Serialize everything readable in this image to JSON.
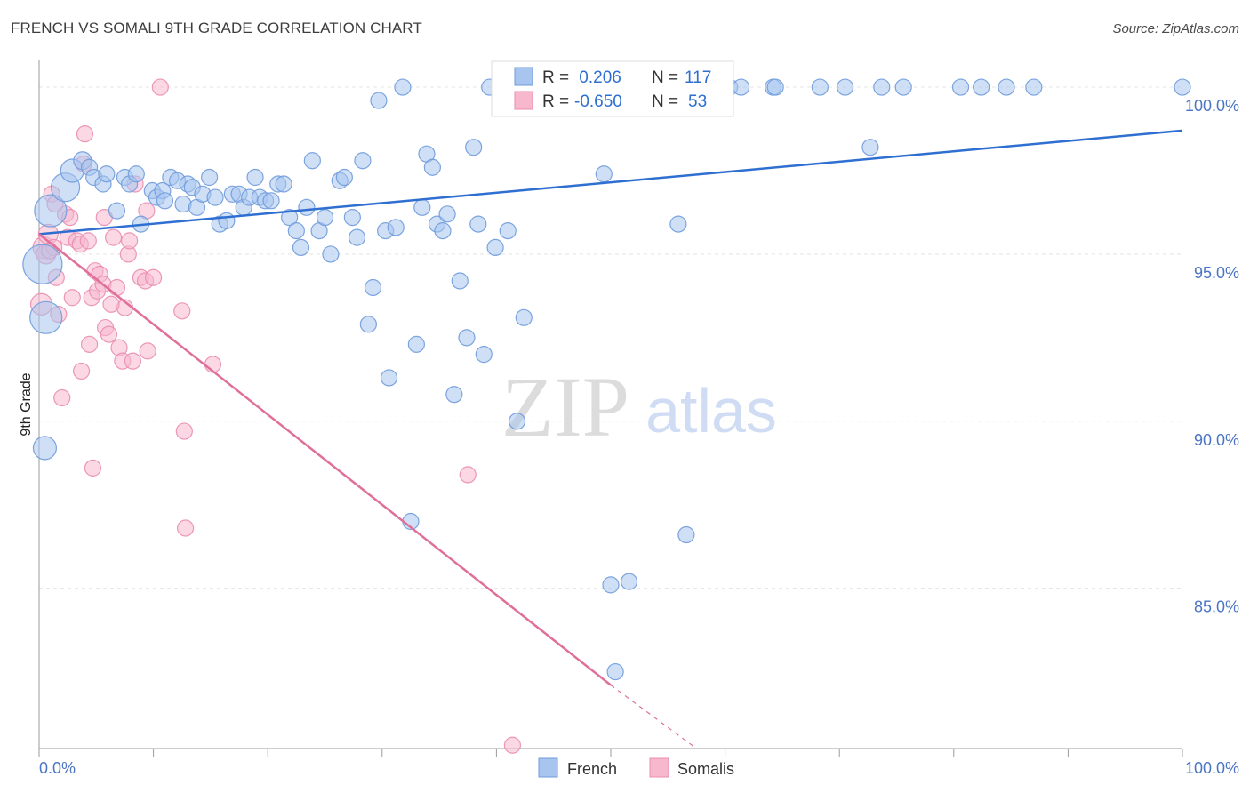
{
  "title": "FRENCH VS SOMALI 9TH GRADE CORRELATION CHART",
  "source": "Source: ZipAtlas.com",
  "watermark": {
    "zip": "ZIP",
    "atlas": "atlas"
  },
  "colors": {
    "french_fill": "#a8c5ef",
    "french_stroke": "#6f9bdc",
    "french_line": "#2e6fd1",
    "somali_fill": "#f7b8cd",
    "somali_stroke": "#ea8db0",
    "somali_line": "#e0709a",
    "tick": "#4a74c4",
    "grid": "#e4e4e4"
  },
  "legend": {
    "french": {
      "r_label": "R = ",
      "r_value": " 0.206",
      "n_label": "N = ",
      "n_value": "117"
    },
    "somali": {
      "r_label": "R = ",
      "r_value": "-0.650",
      "n_label": "N = ",
      "n_value": " 53"
    }
  },
  "chart_data": {
    "type": "scatter",
    "title": "FRENCH VS SOMALI 9TH GRADE CORRELATION CHART",
    "xlabel": "",
    "ylabel": "9th Grade",
    "xlim": [
      0,
      100
    ],
    "ylim": [
      80.2,
      100.8
    ],
    "x_tick_labels": [
      "0.0%",
      "100.0%"
    ],
    "y_ticks": [
      85,
      90,
      95,
      100
    ],
    "y_tick_labels": [
      "85.0%",
      "90.0%",
      "95.0%",
      "100.0%"
    ],
    "grid": true,
    "legend_position": "top-center",
    "series": [
      {
        "name": "French",
        "color": "#a8c5ef",
        "trend": {
          "x": [
            0,
            100
          ],
          "y": [
            95.6,
            98.7
          ]
        },
        "points": [
          {
            "x": 0.3,
            "y": 94.7,
            "s": 22
          },
          {
            "x": 0.6,
            "y": 93.1,
            "s": 18
          },
          {
            "x": 1.0,
            "y": 96.3,
            "s": 18
          },
          {
            "x": 0.5,
            "y": 89.2,
            "s": 13
          },
          {
            "x": 2.3,
            "y": 97.0,
            "s": 16
          },
          {
            "x": 2.9,
            "y": 97.5,
            "s": 13
          },
          {
            "x": 3.8,
            "y": 97.8,
            "s": 10
          },
          {
            "x": 4.4,
            "y": 97.6,
            "s": 9
          },
          {
            "x": 4.8,
            "y": 97.3,
            "s": 9
          },
          {
            "x": 5.6,
            "y": 97.1,
            "s": 9
          },
          {
            "x": 5.9,
            "y": 97.4,
            "s": 9
          },
          {
            "x": 6.8,
            "y": 96.3,
            "s": 9
          },
          {
            "x": 7.5,
            "y": 97.3,
            "s": 9
          },
          {
            "x": 7.9,
            "y": 97.1,
            "s": 9
          },
          {
            "x": 8.5,
            "y": 97.4,
            "s": 9
          },
          {
            "x": 8.9,
            "y": 95.9,
            "s": 9
          },
          {
            "x": 9.9,
            "y": 96.9,
            "s": 9
          },
          {
            "x": 10.3,
            "y": 96.7,
            "s": 9
          },
          {
            "x": 10.8,
            "y": 96.9,
            "s": 9
          },
          {
            "x": 11.0,
            "y": 96.6,
            "s": 9
          },
          {
            "x": 11.5,
            "y": 97.3,
            "s": 9
          },
          {
            "x": 12.1,
            "y": 97.2,
            "s": 9
          },
          {
            "x": 12.6,
            "y": 96.5,
            "s": 9
          },
          {
            "x": 13.0,
            "y": 97.1,
            "s": 9
          },
          {
            "x": 13.4,
            "y": 97.0,
            "s": 9
          },
          {
            "x": 13.8,
            "y": 96.4,
            "s": 9
          },
          {
            "x": 14.3,
            "y": 96.8,
            "s": 9
          },
          {
            "x": 14.9,
            "y": 97.3,
            "s": 9
          },
          {
            "x": 15.4,
            "y": 96.7,
            "s": 9
          },
          {
            "x": 15.8,
            "y": 95.9,
            "s": 9
          },
          {
            "x": 16.4,
            "y": 96.0,
            "s": 9
          },
          {
            "x": 16.9,
            "y": 96.8,
            "s": 9
          },
          {
            "x": 17.5,
            "y": 96.8,
            "s": 9
          },
          {
            "x": 17.9,
            "y": 96.4,
            "s": 9
          },
          {
            "x": 18.4,
            "y": 96.7,
            "s": 9
          },
          {
            "x": 18.9,
            "y": 97.3,
            "s": 9
          },
          {
            "x": 19.3,
            "y": 96.7,
            "s": 9
          },
          {
            "x": 19.8,
            "y": 96.6,
            "s": 9
          },
          {
            "x": 20.3,
            "y": 96.6,
            "s": 9
          },
          {
            "x": 20.9,
            "y": 97.1,
            "s": 9
          },
          {
            "x": 21.4,
            "y": 97.1,
            "s": 9
          },
          {
            "x": 21.9,
            "y": 96.1,
            "s": 9
          },
          {
            "x": 22.5,
            "y": 95.7,
            "s": 9
          },
          {
            "x": 22.9,
            "y": 95.2,
            "s": 9
          },
          {
            "x": 23.4,
            "y": 96.4,
            "s": 9
          },
          {
            "x": 23.9,
            "y": 97.8,
            "s": 9
          },
          {
            "x": 24.5,
            "y": 95.7,
            "s": 9
          },
          {
            "x": 25.0,
            "y": 96.1,
            "s": 9
          },
          {
            "x": 25.5,
            "y": 95.0,
            "s": 9
          },
          {
            "x": 26.3,
            "y": 97.2,
            "s": 9
          },
          {
            "x": 26.7,
            "y": 97.3,
            "s": 9
          },
          {
            "x": 27.4,
            "y": 96.1,
            "s": 9
          },
          {
            "x": 27.8,
            "y": 95.5,
            "s": 9
          },
          {
            "x": 28.3,
            "y": 97.8,
            "s": 9
          },
          {
            "x": 29.2,
            "y": 94.0,
            "s": 9
          },
          {
            "x": 28.8,
            "y": 92.9,
            "s": 9
          },
          {
            "x": 29.7,
            "y": 99.6,
            "s": 9
          },
          {
            "x": 30.3,
            "y": 95.7,
            "s": 9
          },
          {
            "x": 31.2,
            "y": 95.8,
            "s": 9
          },
          {
            "x": 30.6,
            "y": 91.3,
            "s": 9
          },
          {
            "x": 31.8,
            "y": 100.0,
            "s": 9
          },
          {
            "x": 32.5,
            "y": 87.0,
            "s": 9
          },
          {
            "x": 33.0,
            "y": 92.3,
            "s": 9
          },
          {
            "x": 33.5,
            "y": 96.4,
            "s": 9
          },
          {
            "x": 33.9,
            "y": 98.0,
            "s": 9
          },
          {
            "x": 34.4,
            "y": 97.6,
            "s": 9
          },
          {
            "x": 34.8,
            "y": 95.9,
            "s": 9
          },
          {
            "x": 35.3,
            "y": 95.7,
            "s": 9
          },
          {
            "x": 35.7,
            "y": 96.2,
            "s": 9
          },
          {
            "x": 36.3,
            "y": 90.8,
            "s": 9
          },
          {
            "x": 36.8,
            "y": 94.2,
            "s": 9
          },
          {
            "x": 37.4,
            "y": 92.5,
            "s": 9
          },
          {
            "x": 38.0,
            "y": 98.2,
            "s": 9
          },
          {
            "x": 38.4,
            "y": 95.9,
            "s": 9
          },
          {
            "x": 38.9,
            "y": 92.0,
            "s": 9
          },
          {
            "x": 39.4,
            "y": 100.0,
            "s": 9
          },
          {
            "x": 39.9,
            "y": 95.2,
            "s": 9
          },
          {
            "x": 40.6,
            "y": 100.0,
            "s": 9
          },
          {
            "x": 41.0,
            "y": 95.7,
            "s": 9
          },
          {
            "x": 41.8,
            "y": 90.0,
            "s": 9
          },
          {
            "x": 42.4,
            "y": 93.1,
            "s": 9
          },
          {
            "x": 43.2,
            "y": 100.0,
            "s": 9
          },
          {
            "x": 44.4,
            "y": 100.0,
            "s": 9
          },
          {
            "x": 45.8,
            "y": 100.0,
            "s": 9
          },
          {
            "x": 47.2,
            "y": 100.0,
            "s": 9
          },
          {
            "x": 48.6,
            "y": 100.0,
            "s": 9
          },
          {
            "x": 49.4,
            "y": 97.4,
            "s": 9
          },
          {
            "x": 50.0,
            "y": 85.1,
            "s": 9
          },
          {
            "x": 50.4,
            "y": 82.5,
            "s": 9
          },
          {
            "x": 51.6,
            "y": 85.2,
            "s": 9
          },
          {
            "x": 53.9,
            "y": 100.0,
            "s": 9
          },
          {
            "x": 55.1,
            "y": 100.0,
            "s": 9
          },
          {
            "x": 55.9,
            "y": 95.9,
            "s": 9
          },
          {
            "x": 56.6,
            "y": 86.6,
            "s": 9
          },
          {
            "x": 58.3,
            "y": 100.0,
            "s": 9
          },
          {
            "x": 60.4,
            "y": 100.0,
            "s": 9
          },
          {
            "x": 61.4,
            "y": 100.0,
            "s": 9
          },
          {
            "x": 64.2,
            "y": 100.0,
            "s": 9
          },
          {
            "x": 64.4,
            "y": 100.0,
            "s": 9
          },
          {
            "x": 68.3,
            "y": 100.0,
            "s": 9
          },
          {
            "x": 70.5,
            "y": 100.0,
            "s": 9
          },
          {
            "x": 72.7,
            "y": 98.2,
            "s": 9
          },
          {
            "x": 73.7,
            "y": 100.0,
            "s": 9
          },
          {
            "x": 75.6,
            "y": 100.0,
            "s": 9
          },
          {
            "x": 80.6,
            "y": 100.0,
            "s": 9
          },
          {
            "x": 82.4,
            "y": 100.0,
            "s": 9
          },
          {
            "x": 84.6,
            "y": 100.0,
            "s": 9
          },
          {
            "x": 87.0,
            "y": 100.0,
            "s": 9
          },
          {
            "x": 100.0,
            "y": 100.0,
            "s": 9
          }
        ]
      },
      {
        "name": "Somalis",
        "color": "#f7b8cd",
        "trend": {
          "x": [
            0,
            50
          ],
          "y": [
            95.6,
            82.1
          ],
          "dashed_to": {
            "x": 57.5,
            "y": 80.2
          }
        },
        "points": [
          {
            "x": 0.2,
            "y": 93.5,
            "s": 12
          },
          {
            "x": 0.4,
            "y": 95.2,
            "s": 12
          },
          {
            "x": 0.6,
            "y": 95.0,
            "s": 11
          },
          {
            "x": 0.8,
            "y": 95.6,
            "s": 11
          },
          {
            "x": 1.1,
            "y": 96.8,
            "s": 9
          },
          {
            "x": 1.3,
            "y": 95.2,
            "s": 9
          },
          {
            "x": 1.5,
            "y": 94.3,
            "s": 9
          },
          {
            "x": 1.7,
            "y": 93.2,
            "s": 9
          },
          {
            "x": 2.0,
            "y": 90.7,
            "s": 9
          },
          {
            "x": 2.3,
            "y": 96.2,
            "s": 9
          },
          {
            "x": 2.5,
            "y": 95.5,
            "s": 9
          },
          {
            "x": 2.7,
            "y": 96.1,
            "s": 9
          },
          {
            "x": 2.9,
            "y": 93.7,
            "s": 9
          },
          {
            "x": 3.3,
            "y": 95.4,
            "s": 9
          },
          {
            "x": 3.6,
            "y": 95.3,
            "s": 9
          },
          {
            "x": 3.7,
            "y": 91.5,
            "s": 9
          },
          {
            "x": 3.9,
            "y": 97.7,
            "s": 9
          },
          {
            "x": 4.0,
            "y": 98.6,
            "s": 9
          },
          {
            "x": 4.3,
            "y": 95.4,
            "s": 9
          },
          {
            "x": 4.4,
            "y": 92.3,
            "s": 9
          },
          {
            "x": 4.6,
            "y": 93.7,
            "s": 9
          },
          {
            "x": 4.7,
            "y": 88.6,
            "s": 9
          },
          {
            "x": 4.9,
            "y": 94.5,
            "s": 9
          },
          {
            "x": 5.1,
            "y": 93.9,
            "s": 9
          },
          {
            "x": 5.3,
            "y": 94.4,
            "s": 9
          },
          {
            "x": 5.6,
            "y": 94.1,
            "s": 9
          },
          {
            "x": 5.7,
            "y": 96.1,
            "s": 9
          },
          {
            "x": 5.8,
            "y": 92.8,
            "s": 9
          },
          {
            "x": 6.1,
            "y": 92.6,
            "s": 9
          },
          {
            "x": 6.5,
            "y": 95.5,
            "s": 9
          },
          {
            "x": 6.8,
            "y": 94.0,
            "s": 9
          },
          {
            "x": 7.0,
            "y": 92.2,
            "s": 9
          },
          {
            "x": 7.3,
            "y": 91.8,
            "s": 9
          },
          {
            "x": 7.5,
            "y": 93.4,
            "s": 9
          },
          {
            "x": 7.8,
            "y": 95.0,
            "s": 9
          },
          {
            "x": 7.9,
            "y": 95.4,
            "s": 9
          },
          {
            "x": 8.2,
            "y": 91.8,
            "s": 9
          },
          {
            "x": 8.4,
            "y": 97.1,
            "s": 9
          },
          {
            "x": 8.9,
            "y": 94.3,
            "s": 9
          },
          {
            "x": 9.3,
            "y": 94.2,
            "s": 9
          },
          {
            "x": 9.4,
            "y": 96.3,
            "s": 9
          },
          {
            "x": 9.5,
            "y": 92.1,
            "s": 9
          },
          {
            "x": 10.0,
            "y": 94.3,
            "s": 9
          },
          {
            "x": 12.5,
            "y": 93.3,
            "s": 9
          },
          {
            "x": 12.7,
            "y": 89.7,
            "s": 9
          },
          {
            "x": 10.6,
            "y": 100.0,
            "s": 9
          },
          {
            "x": 12.8,
            "y": 86.8,
            "s": 9
          },
          {
            "x": 15.2,
            "y": 91.7,
            "s": 9
          },
          {
            "x": 37.5,
            "y": 88.4,
            "s": 9
          },
          {
            "x": 41.4,
            "y": 80.3,
            "s": 9
          },
          {
            "x": 1.4,
            "y": 96.5,
            "s": 9
          },
          {
            "x": 0.9,
            "y": 95.1,
            "s": 9
          },
          {
            "x": 6.3,
            "y": 93.5,
            "s": 9
          }
        ]
      }
    ]
  }
}
